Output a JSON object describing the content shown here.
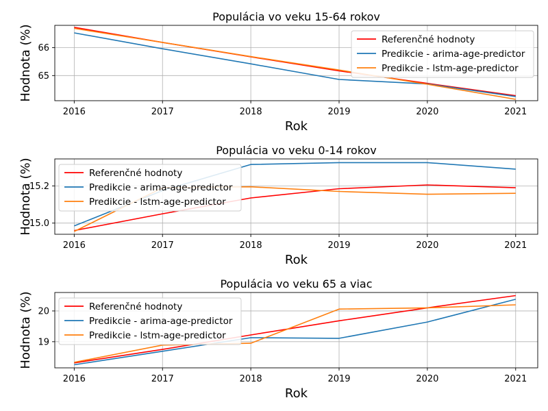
{
  "chart_data": [
    {
      "type": "line",
      "title": "Populácia vo veku 15-64 rokov",
      "xlabel": "Rok",
      "ylabel": "Hodnota (%)",
      "x": [
        2016,
        2017,
        2018,
        2019,
        2020,
        2021
      ],
      "xlim": [
        2015.78,
        2021.25
      ],
      "ylim": [
        64.1,
        66.8
      ],
      "yticks": [
        65,
        66
      ],
      "grid": true,
      "legend_position": "top-right",
      "series": [
        {
          "name": "Referenčné hodnoty",
          "color": "#ff0000",
          "values": [
            66.73,
            66.19,
            65.67,
            65.17,
            64.72,
            64.28
          ]
        },
        {
          "name": "Predikcie - arima-age-predictor",
          "color": "#1f77b4",
          "values": [
            66.53,
            65.96,
            65.42,
            64.86,
            64.7,
            64.25
          ]
        },
        {
          "name": "Predikcie - lstm-age-predictor",
          "color": "#ff7f0e",
          "values": [
            66.69,
            66.19,
            65.68,
            65.2,
            64.69,
            64.15
          ]
        }
      ]
    },
    {
      "type": "line",
      "title": "Populácia vo veku  0-14 rokov",
      "xlabel": "Rok",
      "ylabel": "Hodnota (%)",
      "x": [
        2016,
        2017,
        2018,
        2019,
        2020,
        2021
      ],
      "xlim": [
        2015.78,
        2021.25
      ],
      "ylim": [
        14.94,
        15.345
      ],
      "yticks": [
        15.0,
        15.2
      ],
      "grid": true,
      "legend_position": "top-left",
      "series": [
        {
          "name": "Referenčné hodnoty",
          "color": "#ff0000",
          "values": [
            14.96,
            15.05,
            15.135,
            15.185,
            15.205,
            15.19
          ]
        },
        {
          "name": "Predikcie - arima-age-predictor",
          "color": "#1f77b4",
          "values": [
            14.985,
            15.175,
            15.315,
            15.325,
            15.325,
            15.29
          ]
        },
        {
          "name": "Predikcie - lstm-age-predictor",
          "color": "#ff7f0e",
          "values": [
            14.955,
            15.19,
            15.195,
            15.17,
            15.155,
            15.16
          ]
        }
      ]
    },
    {
      "type": "line",
      "title": "Populácia vo veku 65 a viac",
      "xlabel": "Rok",
      "ylabel": "Hodnota (%)",
      "x": [
        2016,
        2017,
        2018,
        2019,
        2020,
        2021
      ],
      "xlim": [
        2015.78,
        2021.25
      ],
      "ylim": [
        18.15,
        20.6
      ],
      "yticks": [
        19,
        20
      ],
      "grid": true,
      "legend_position": "top-left",
      "series": [
        {
          "name": "Referenčné hodnoty",
          "color": "#ff0000",
          "values": [
            18.31,
            18.75,
            19.22,
            19.68,
            20.1,
            20.5
          ]
        },
        {
          "name": "Predikcie - arima-age-predictor",
          "color": "#1f77b4",
          "values": [
            18.25,
            18.69,
            19.13,
            19.11,
            19.64,
            20.38
          ]
        },
        {
          "name": "Predikcie - lstm-age-predictor",
          "color": "#ff7f0e",
          "values": [
            18.33,
            18.89,
            18.95,
            20.06,
            20.1,
            20.2
          ]
        }
      ]
    }
  ]
}
